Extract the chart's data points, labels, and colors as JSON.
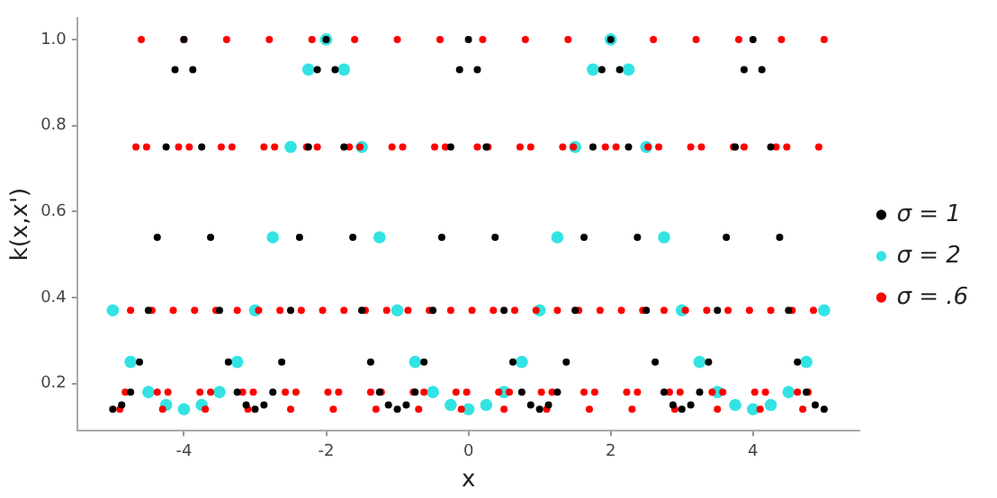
{
  "chart_data": {
    "type": "scatter",
    "xlabel": "x",
    "ylabel": "k(x,x')",
    "xlim": [
      -5.5,
      5.5
    ],
    "ylim": [
      0.09,
      1.05
    ],
    "xticks": [
      -4,
      -2,
      0,
      2,
      4
    ],
    "yticks": [
      {
        "value": 0.2,
        "label": "0.2"
      },
      {
        "value": 0.4,
        "label": "0.4"
      },
      {
        "value": 0.6,
        "label": "0.6"
      },
      {
        "value": 0.8,
        "label": "0.8"
      },
      {
        "value": 1,
        "label": "1.0"
      }
    ],
    "grid": false,
    "legend": "right",
    "marker": "circle",
    "series": [
      {
        "name": "σ = 1",
        "color": "#000000",
        "x": [
          -5,
          -4.875,
          -4.75,
          -4.625,
          -4.5,
          -4.375,
          -4.25,
          -4.125,
          -4,
          -3.875,
          -3.75,
          -3.625,
          -3.5,
          -3.375,
          -3.25,
          -3.125,
          -3,
          -2.875,
          -2.75,
          -2.625,
          -2.5,
          -2.375,
          -2.25,
          -2.125,
          -2,
          -1.875,
          -1.75,
          -1.625,
          -1.5,
          -1.375,
          -1.25,
          -1.125,
          -1,
          -0.875,
          -0.75,
          -0.625,
          -0.5,
          -0.375,
          -0.25,
          -0.125,
          0,
          0.125,
          0.25,
          0.375,
          0.5,
          0.625,
          0.75,
          0.875,
          1,
          1.125,
          1.25,
          1.375,
          1.5,
          1.625,
          1.75,
          1.875,
          2,
          2.125,
          2.25,
          2.375,
          2.5,
          2.625,
          2.75,
          2.875,
          3,
          3.125,
          3.25,
          3.375,
          3.5,
          3.625,
          3.75,
          3.875,
          4,
          4.125,
          4.25,
          4.375,
          4.5,
          4.625,
          4.75,
          4.875,
          5
        ],
        "values": [
          0.14,
          0.15,
          0.18,
          0.25,
          0.37,
          0.54,
          0.75,
          0.93,
          1,
          0.93,
          0.75,
          0.54,
          0.37,
          0.25,
          0.18,
          0.15,
          0.14,
          0.15,
          0.18,
          0.25,
          0.37,
          0.54,
          0.75,
          0.93,
          1,
          0.93,
          0.75,
          0.54,
          0.37,
          0.25,
          0.18,
          0.15,
          0.14,
          0.15,
          0.18,
          0.25,
          0.37,
          0.54,
          0.75,
          0.93,
          1,
          0.93,
          0.75,
          0.54,
          0.37,
          0.25,
          0.18,
          0.15,
          0.14,
          0.15,
          0.18,
          0.25,
          0.37,
          0.54,
          0.75,
          0.93,
          1,
          0.93,
          0.75,
          0.54,
          0.37,
          0.25,
          0.18,
          0.15,
          0.14,
          0.15,
          0.18,
          0.25,
          0.37,
          0.54,
          0.75,
          0.93,
          1,
          0.93,
          0.75,
          0.54,
          0.37,
          0.25,
          0.18,
          0.15,
          0.14
        ]
      },
      {
        "name": "σ = 2",
        "color": "#33e3e3",
        "x": [
          -5,
          -4.75,
          -4.5,
          -4.25,
          -4,
          -3.75,
          -3.5,
          -3.25,
          -3,
          -2.75,
          -2.5,
          -2.25,
          -2,
          -1.75,
          -1.5,
          -1.25,
          -1,
          -0.75,
          -0.5,
          -0.25,
          0,
          0.25,
          0.5,
          0.75,
          1,
          1.25,
          1.5,
          1.75,
          2,
          2.25,
          2.5,
          2.75,
          3,
          3.25,
          3.5,
          3.75,
          4,
          4.25,
          4.5,
          4.75,
          5
        ],
        "values": [
          0.37,
          0.25,
          0.18,
          0.15,
          0.14,
          0.15,
          0.18,
          0.25,
          0.37,
          0.54,
          0.75,
          0.93,
          1,
          0.93,
          0.75,
          0.54,
          0.37,
          0.25,
          0.18,
          0.15,
          0.14,
          0.15,
          0.18,
          0.25,
          0.37,
          0.54,
          0.75,
          0.93,
          1,
          0.93,
          0.75,
          0.54,
          0.37,
          0.25,
          0.18,
          0.15,
          0.14,
          0.15,
          0.18,
          0.25,
          0.37
        ]
      },
      {
        "name": "σ = .6",
        "color": "#ff0000",
        "x": [
          -4.9,
          -4.825,
          -4.75,
          -4.675,
          -4.6,
          -4.525,
          -4.45,
          -4.375,
          -4.3,
          -4.225,
          -4.15,
          -4.075,
          -4.0,
          -3.925,
          -3.85,
          -3.775,
          -3.7,
          -3.625,
          -3.55,
          -3.475,
          -3.4,
          -3.325,
          -3.25,
          -3.175,
          -3.1,
          -3.025,
          -2.95,
          -2.875,
          -2.8,
          -2.725,
          -2.65,
          -2.575,
          -2.5,
          -2.425,
          -2.35,
          -2.275,
          -2.2,
          -2.125,
          -2.05,
          -1.975,
          -1.9,
          -1.825,
          -1.75,
          -1.675,
          -1.6,
          -1.525,
          -1.45,
          -1.375,
          -1.3,
          -1.225,
          -1.15,
          -1.075,
          -1.0,
          -0.925,
          -0.85,
          -0.775,
          -0.7,
          -0.625,
          -0.55,
          -0.475,
          -0.4,
          -0.325,
          -0.25,
          -0.175,
          -0.1,
          -0.025,
          0.05,
          0.125,
          0.2,
          0.275,
          0.35,
          0.425,
          0.5,
          0.575,
          0.65,
          0.725,
          0.8,
          0.875,
          0.95,
          1.025,
          1.1,
          1.175,
          1.25,
          1.325,
          1.4,
          1.475,
          1.55,
          1.625,
          1.7,
          1.775,
          1.85,
          1.925,
          2.075,
          2.15,
          2.225,
          2.3,
          2.375,
          2.45,
          2.525,
          2.6,
          2.675,
          2.75,
          2.825,
          2.9,
          2.975,
          3.05,
          3.125,
          3.2,
          3.275,
          3.35,
          3.425,
          3.5,
          3.575,
          3.65,
          3.725,
          3.8,
          3.875,
          3.95,
          4.025,
          4.1,
          4.175,
          4.25,
          4.325,
          4.4,
          4.475,
          4.55,
          4.625,
          4.7,
          4.775,
          4.85,
          4.925,
          5.0
        ],
        "values": [
          0.14,
          0.18,
          0.37,
          0.75,
          1,
          0.75,
          0.37,
          0.18,
          0.14,
          0.18,
          0.37,
          0.75,
          1,
          0.75,
          0.37,
          0.18,
          0.14,
          0.18,
          0.37,
          0.75,
          1,
          0.75,
          0.37,
          0.18,
          0.14,
          0.18,
          0.37,
          0.75,
          1,
          0.75,
          0.37,
          0.18,
          0.14,
          0.18,
          0.37,
          0.75,
          1,
          0.75,
          0.37,
          0.18,
          0.14,
          0.18,
          0.37,
          0.75,
          1,
          0.75,
          0.37,
          0.18,
          0.14,
          0.18,
          0.37,
          0.75,
          1,
          0.75,
          0.37,
          0.18,
          0.14,
          0.18,
          0.37,
          0.75,
          1,
          0.75,
          0.37,
          0.18,
          0.14,
          0.18,
          0.37,
          0.75,
          1,
          0.75,
          0.37,
          0.18,
          0.14,
          0.18,
          0.37,
          0.75,
          1,
          0.75,
          0.37,
          0.18,
          0.14,
          0.18,
          0.37,
          0.75,
          1,
          0.75,
          0.37,
          0.18,
          0.14,
          0.18,
          0.37,
          0.75,
          0.75,
          0.37,
          0.18,
          0.14,
          0.18,
          0.37,
          0.75,
          1,
          0.75,
          0.37,
          0.18,
          0.14,
          0.18,
          0.37,
          0.75,
          1,
          0.75,
          0.37,
          0.18,
          0.14,
          0.18,
          0.37,
          0.75,
          1,
          0.75,
          0.37,
          0.18,
          0.14,
          0.18,
          0.37,
          0.75,
          1,
          0.75,
          0.37,
          0.18,
          0.14,
          0.18,
          0.37,
          0.75,
          1
        ]
      }
    ]
  }
}
